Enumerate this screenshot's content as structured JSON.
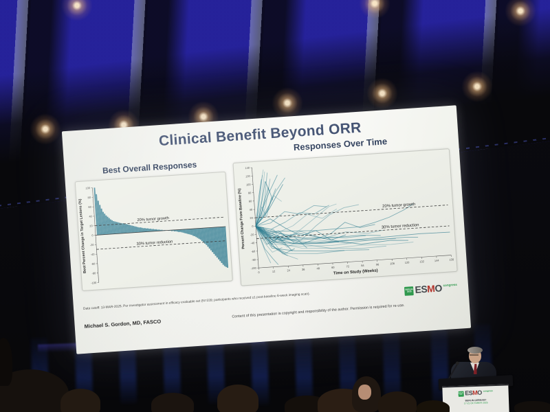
{
  "slide": {
    "title": "Clinical Benefit Beyond ORR",
    "footnote": "Data cutoff: 13-MAR-2025. Per investigator assessment in efficacy evaluable set (N=339; participants who received ≥1 post-baseline 6-week imaging scan).",
    "author": "Michael S. Gordon, MD, FASCO",
    "copyright": "Content of this presentation is copyright and responsibility of the author. Permission is required for re-use."
  },
  "esmo_logo": {
    "badge_line1": "BERLIN",
    "badge_line2": "2025",
    "part1": "ES",
    "part2": "M",
    "part3": "O",
    "suffix": "congress"
  },
  "podium": {
    "line1": "BERLIN GERMANY",
    "line2": "17-21 OCTOBER 2025"
  },
  "colors": {
    "teal_bar": "#5492a3",
    "teal_line": "#2e7d91",
    "title_blue": "#39496b",
    "esmo_green": "#2f9e4f",
    "dashed_line": "#3a3a3a"
  },
  "chart_data": [
    {
      "type": "bar",
      "title": "Best Overall Responses",
      "xlabel": "",
      "ylabel": "Best Percent Change in Target Lesions (%)",
      "ylim": [
        -100,
        100
      ],
      "yticks": [
        100,
        80,
        60,
        40,
        20,
        0,
        -20,
        -40,
        -60,
        -80,
        -100
      ],
      "grid": false,
      "reference_lines": [
        {
          "y": 20,
          "label": "20% tumor growth"
        },
        {
          "y": -30,
          "label": "30% tumor reduction"
        }
      ],
      "bar_color": "#5492a3",
      "values": [
        100,
        86,
        72,
        63,
        55,
        48,
        44,
        40,
        37,
        34,
        31,
        29,
        27,
        26,
        25,
        24,
        23,
        22,
        21,
        21,
        20,
        19,
        18,
        17,
        16,
        15,
        14,
        13,
        12,
        11,
        10,
        10,
        9,
        8,
        8,
        7,
        7,
        6,
        6,
        5,
        5,
        4,
        4,
        3,
        3,
        2,
        2,
        1,
        1,
        0,
        0,
        -1,
        -1,
        -2,
        -2,
        -3,
        -3,
        -4,
        -5,
        -5,
        -6,
        -7,
        -8,
        -9,
        -10,
        -11,
        -12,
        -13,
        -15,
        -16,
        -18,
        -20,
        -22,
        -24,
        -27,
        -30,
        -33,
        -36,
        -40,
        -44,
        -48,
        -52,
        -56,
        -60,
        -64,
        -68,
        -72,
        -76,
        -80,
        -83,
        -85,
        -87
      ]
    },
    {
      "type": "line",
      "title": "Responses Over Time",
      "xlabel": "Time on Study (Weeks)",
      "ylabel": "Percent Change From Baseline (%)",
      "xlim": [
        0,
        156
      ],
      "ylim": [
        -100,
        140
      ],
      "xticks": [
        0,
        12,
        24,
        36,
        48,
        60,
        72,
        84,
        96,
        108,
        120,
        132,
        144,
        156
      ],
      "yticks": [
        140,
        120,
        100,
        80,
        60,
        40,
        20,
        0,
        -20,
        -40,
        -60,
        -80,
        -100
      ],
      "grid": false,
      "legend": "none",
      "reference_lines": [
        {
          "y": 20,
          "label": "20% tumor growth"
        },
        {
          "y": -30,
          "label": "30% tumor reduction"
        }
      ],
      "line_color": "#2e7d91",
      "lines": [
        [
          [
            0,
            0
          ],
          [
            3,
            40
          ],
          [
            6,
            95
          ],
          [
            9,
            133
          ]
        ],
        [
          [
            0,
            0
          ],
          [
            4,
            55
          ],
          [
            8,
            120
          ]
        ],
        [
          [
            0,
            0
          ],
          [
            5,
            25
          ],
          [
            9,
            70
          ],
          [
            12,
            125
          ]
        ],
        [
          [
            0,
            0
          ],
          [
            6,
            35
          ],
          [
            12,
            90
          ],
          [
            15,
            60
          ]
        ],
        [
          [
            0,
            0
          ],
          [
            3,
            20
          ],
          [
            6,
            55
          ],
          [
            10,
            105
          ],
          [
            13,
            80
          ]
        ],
        [
          [
            0,
            0
          ],
          [
            6,
            60
          ],
          [
            10,
            128
          ]
        ],
        [
          [
            0,
            0
          ],
          [
            4,
            15
          ],
          [
            9,
            45
          ],
          [
            14,
            110
          ]
        ],
        [
          [
            0,
            0
          ],
          [
            6,
            22
          ],
          [
            12,
            48
          ],
          [
            18,
            86
          ]
        ],
        [
          [
            0,
            0
          ],
          [
            5,
            30
          ],
          [
            12,
            75
          ],
          [
            20,
            118
          ]
        ],
        [
          [
            0,
            0
          ],
          [
            6,
            18
          ],
          [
            12,
            40
          ],
          [
            24,
            95
          ]
        ],
        [
          [
            0,
            0
          ],
          [
            8,
            25
          ],
          [
            16,
            70
          ],
          [
            22,
            55
          ]
        ],
        [
          [
            0,
            0
          ],
          [
            6,
            45
          ],
          [
            9,
            20
          ],
          [
            14,
            65
          ]
        ],
        [
          [
            0,
            0
          ],
          [
            10,
            35
          ],
          [
            18,
            80
          ],
          [
            26,
            110
          ]
        ],
        [
          [
            0,
            0
          ],
          [
            4,
            70
          ],
          [
            7,
            110
          ]
        ],
        [
          [
            0,
            0
          ],
          [
            6,
            -25
          ],
          [
            12,
            -45
          ],
          [
            18,
            -30
          ]
        ],
        [
          [
            0,
            0
          ],
          [
            6,
            -40
          ],
          [
            12,
            -65
          ],
          [
            20,
            -55
          ]
        ],
        [
          [
            0,
            0
          ],
          [
            5,
            -15
          ],
          [
            12,
            -35
          ],
          [
            24,
            -50
          ]
        ],
        [
          [
            0,
            0
          ],
          [
            6,
            -55
          ],
          [
            12,
            -80
          ],
          [
            16,
            -95
          ]
        ],
        [
          [
            0,
            0
          ],
          [
            6,
            -10
          ],
          [
            12,
            -20
          ],
          [
            18,
            -15
          ],
          [
            26,
            -35
          ]
        ],
        [
          [
            0,
            0
          ],
          [
            8,
            -30
          ],
          [
            16,
            -60
          ],
          [
            24,
            -75
          ]
        ],
        [
          [
            0,
            0
          ],
          [
            6,
            -20
          ],
          [
            14,
            -10
          ],
          [
            20,
            -40
          ],
          [
            28,
            -25
          ]
        ],
        [
          [
            0,
            0
          ],
          [
            6,
            -60
          ],
          [
            10,
            -90
          ]
        ],
        [
          [
            0,
            0
          ],
          [
            12,
            -35
          ],
          [
            20,
            -20
          ],
          [
            30,
            -45
          ]
        ],
        [
          [
            0,
            0
          ],
          [
            6,
            -5
          ],
          [
            12,
            -50
          ],
          [
            22,
            -70
          ],
          [
            30,
            -60
          ]
        ],
        [
          [
            0,
            0
          ],
          [
            8,
            -45
          ],
          [
            18,
            -30
          ],
          [
            28,
            -65
          ]
        ],
        [
          [
            0,
            0
          ],
          [
            6,
            -35
          ],
          [
            12,
            -15
          ],
          [
            24,
            -55
          ],
          [
            36,
            -40
          ]
        ],
        [
          [
            0,
            0
          ],
          [
            10,
            -25
          ],
          [
            20,
            -70
          ],
          [
            32,
            -85
          ]
        ],
        [
          [
            0,
            0
          ],
          [
            6,
            -18
          ],
          [
            16,
            -42
          ],
          [
            30,
            -30
          ],
          [
            40,
            -60
          ]
        ],
        [
          [
            0,
            0
          ],
          [
            12,
            -30
          ],
          [
            24,
            -45
          ],
          [
            48,
            -50
          ],
          [
            72,
            -48
          ],
          [
            96,
            -52
          ],
          [
            120,
            -50
          ],
          [
            130,
            -52
          ]
        ],
        [
          [
            0,
            0
          ],
          [
            12,
            -25
          ],
          [
            36,
            -45
          ],
          [
            60,
            -50
          ],
          [
            84,
            -48
          ],
          [
            108,
            -46
          ],
          [
            132,
            -44
          ],
          [
            156,
            -45
          ]
        ],
        [
          [
            0,
            0
          ],
          [
            12,
            -40
          ],
          [
            36,
            -60
          ],
          [
            60,
            -65
          ],
          [
            84,
            -62
          ],
          [
            108,
            -65
          ],
          [
            126,
            -63
          ]
        ],
        [
          [
            0,
            0
          ],
          [
            12,
            -10
          ],
          [
            24,
            -30
          ],
          [
            48,
            -42
          ],
          [
            72,
            -55
          ],
          [
            96,
            -50
          ],
          [
            112,
            -52
          ]
        ],
        [
          [
            0,
            0
          ],
          [
            12,
            -50
          ],
          [
            24,
            -70
          ],
          [
            48,
            -75
          ],
          [
            72,
            -72
          ],
          [
            90,
            -74
          ]
        ],
        [
          [
            0,
            0
          ],
          [
            12,
            -15
          ],
          [
            36,
            -35
          ],
          [
            60,
            -40
          ],
          [
            84,
            -38
          ],
          [
            100,
            -42
          ]
        ],
        [
          [
            0,
            0
          ],
          [
            12,
            -30
          ],
          [
            36,
            -25
          ],
          [
            60,
            -45
          ],
          [
            84,
            -60
          ],
          [
            108,
            -55
          ],
          [
            122,
            -58
          ]
        ],
        [
          [
            0,
            0
          ],
          [
            12,
            -45
          ],
          [
            36,
            -55
          ],
          [
            60,
            -58
          ],
          [
            76,
            -56
          ]
        ],
        [
          [
            0,
            0
          ],
          [
            12,
            -20
          ],
          [
            36,
            -50
          ],
          [
            60,
            -65
          ],
          [
            84,
            -70
          ],
          [
            104,
            -68
          ]
        ],
        [
          [
            0,
            0
          ],
          [
            12,
            -35
          ],
          [
            36,
            -40
          ],
          [
            60,
            -38
          ],
          [
            72,
            -42
          ],
          [
            88,
            -40
          ]
        ],
        [
          [
            0,
            0
          ],
          [
            12,
            -55
          ],
          [
            30,
            -65
          ],
          [
            54,
            -70
          ],
          [
            70,
            -72
          ]
        ],
        [
          [
            0,
            0
          ],
          [
            12,
            -28
          ],
          [
            30,
            -48
          ],
          [
            54,
            -52
          ],
          [
            66,
            -50
          ]
        ],
        [
          [
            0,
            0
          ],
          [
            12,
            -20
          ],
          [
            24,
            -35
          ],
          [
            36,
            -15
          ],
          [
            48,
            10
          ],
          [
            60,
            35
          ],
          [
            66,
            40
          ]
        ],
        [
          [
            0,
            0
          ],
          [
            12,
            -30
          ],
          [
            36,
            -40
          ],
          [
            48,
            -10
          ],
          [
            60,
            15
          ],
          [
            72,
            30
          ],
          [
            84,
            35
          ]
        ],
        [
          [
            0,
            0
          ],
          [
            12,
            -10
          ],
          [
            24,
            5
          ],
          [
            36,
            25
          ],
          [
            48,
            20
          ],
          [
            60,
            38
          ]
        ],
        [
          [
            0,
            0
          ],
          [
            12,
            -40
          ],
          [
            36,
            -50
          ],
          [
            60,
            -30
          ],
          [
            72,
            -5
          ],
          [
            84,
            -20
          ],
          [
            96,
            -15
          ]
        ],
        [
          [
            0,
            0
          ],
          [
            12,
            15
          ],
          [
            24,
            -10
          ],
          [
            36,
            -30
          ],
          [
            48,
            -20
          ],
          [
            60,
            -45
          ],
          [
            72,
            -35
          ]
        ],
        [
          [
            0,
            0
          ],
          [
            12,
            -25
          ],
          [
            30,
            -5
          ],
          [
            42,
            20
          ],
          [
            54,
            8
          ],
          [
            66,
            28
          ]
        ],
        [
          [
            0,
            0
          ],
          [
            18,
            -35
          ],
          [
            36,
            -20
          ],
          [
            54,
            -40
          ],
          [
            72,
            -28
          ],
          [
            90,
            -35
          ],
          [
            102,
            -30
          ]
        ],
        [
          [
            0,
            0
          ],
          [
            12,
            5
          ],
          [
            24,
            30
          ],
          [
            36,
            22
          ],
          [
            48,
            40
          ],
          [
            58,
            35
          ]
        ],
        [
          [
            0,
            0
          ],
          [
            12,
            -15
          ],
          [
            48,
            -20
          ],
          [
            84,
            -18
          ],
          [
            96,
            -10
          ],
          [
            108,
            0
          ],
          [
            120,
            15
          ],
          [
            128,
            28
          ]
        ]
      ]
    }
  ]
}
